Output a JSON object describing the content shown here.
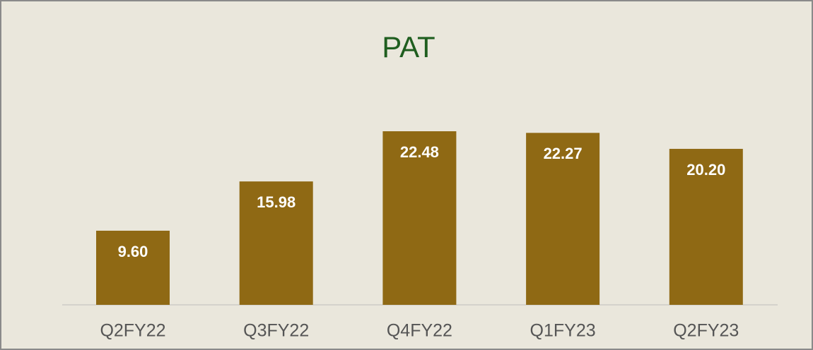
{
  "chart_data": {
    "type": "bar",
    "title": "PAT",
    "categories": [
      "Q2FY22",
      "Q3FY22",
      "Q4FY22",
      "Q1FY23",
      "Q2FY23"
    ],
    "values": [
      9.6,
      15.98,
      22.48,
      22.27,
      20.2
    ],
    "value_labels": [
      "9.60",
      "15.98",
      "22.48",
      "22.27",
      "20.20"
    ],
    "color": "#8f6914",
    "title_color": "#1f5e1f"
  }
}
